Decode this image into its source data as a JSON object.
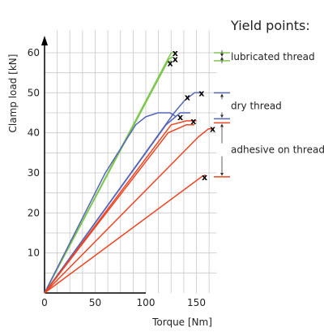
{
  "chart_data": {
    "type": "line",
    "xlabel": "Torque [Nm]",
    "ylabel": "Clamp load [kN]",
    "xlim": [
      0,
      170
    ],
    "ylim": [
      0,
      65
    ],
    "x_ticks": [
      0,
      50,
      100,
      150
    ],
    "y_ticks": [
      10,
      20,
      30,
      40,
      50,
      60
    ],
    "grid": true,
    "colors": {
      "lubricated": "#7ec850",
      "dry": "#5566b8",
      "adhesive": "#ee4422"
    },
    "series": [
      {
        "group": "lubricated",
        "points": [
          [
            0,
            0
          ],
          [
            125,
            60
          ],
          [
            128,
            60
          ]
        ]
      },
      {
        "group": "lubricated",
        "points": [
          [
            0,
            0
          ],
          [
            123,
            58.5
          ],
          [
            127,
            59
          ]
        ]
      },
      {
        "group": "lubricated",
        "points": [
          [
            0,
            0
          ],
          [
            121,
            57.5
          ],
          [
            125,
            58
          ]
        ]
      },
      {
        "group": "dry",
        "points": [
          [
            0,
            0
          ],
          [
            60,
            30
          ],
          [
            90,
            42
          ],
          [
            100,
            44
          ],
          [
            112,
            45
          ],
          [
            124,
            45
          ],
          [
            130,
            44
          ]
        ]
      },
      {
        "group": "dry",
        "points": [
          [
            0,
            0
          ],
          [
            128,
            45
          ],
          [
            138,
            48
          ],
          [
            148,
            50
          ],
          [
            156,
            50
          ]
        ]
      },
      {
        "group": "dry",
        "points": [
          [
            0,
            0
          ],
          [
            120,
            42
          ],
          [
            134,
            45
          ],
          [
            140,
            45
          ],
          [
            144,
            45
          ]
        ]
      },
      {
        "group": "adhesive",
        "points": [
          [
            0,
            0
          ],
          [
            125,
            42
          ],
          [
            140,
            43
          ],
          [
            150,
            43
          ]
        ]
      },
      {
        "group": "adhesive",
        "points": [
          [
            0,
            0
          ],
          [
            122,
            40
          ],
          [
            140,
            42
          ],
          [
            148,
            42
          ]
        ]
      },
      {
        "group": "adhesive",
        "points": [
          [
            0,
            0
          ],
          [
            152,
            39
          ],
          [
            162,
            41
          ],
          [
            167,
            41
          ]
        ]
      },
      {
        "group": "adhesive",
        "points": [
          [
            0,
            0
          ],
          [
            155,
            29
          ],
          [
            159,
            29.5
          ]
        ]
      }
    ],
    "markers": [
      {
        "x": 129,
        "y": 60,
        "label": "x"
      },
      {
        "x": 129,
        "y": 58.5,
        "label": "x"
      },
      {
        "x": 124,
        "y": 57.5,
        "label": "x"
      },
      {
        "x": 155,
        "y": 50,
        "label": "x"
      },
      {
        "x": 141,
        "y": 49,
        "label": "x"
      },
      {
        "x": 134,
        "y": 44,
        "label": "x"
      },
      {
        "x": 147,
        "y": 43,
        "label": "x"
      },
      {
        "x": 166,
        "y": 41,
        "label": "x"
      },
      {
        "x": 158,
        "y": 29,
        "label": "x"
      }
    ]
  },
  "yield_points": {
    "title": "Yield points:",
    "groups": [
      {
        "key": "lubricated",
        "label": "lubricated thread",
        "top": 60,
        "bottom": 58
      },
      {
        "key": "dry",
        "label": "dry thread",
        "top": 50,
        "bottom": 43.5
      },
      {
        "key": "adhesive",
        "label": "adhesive on thread",
        "top": 42.5,
        "bottom": 29
      }
    ]
  }
}
